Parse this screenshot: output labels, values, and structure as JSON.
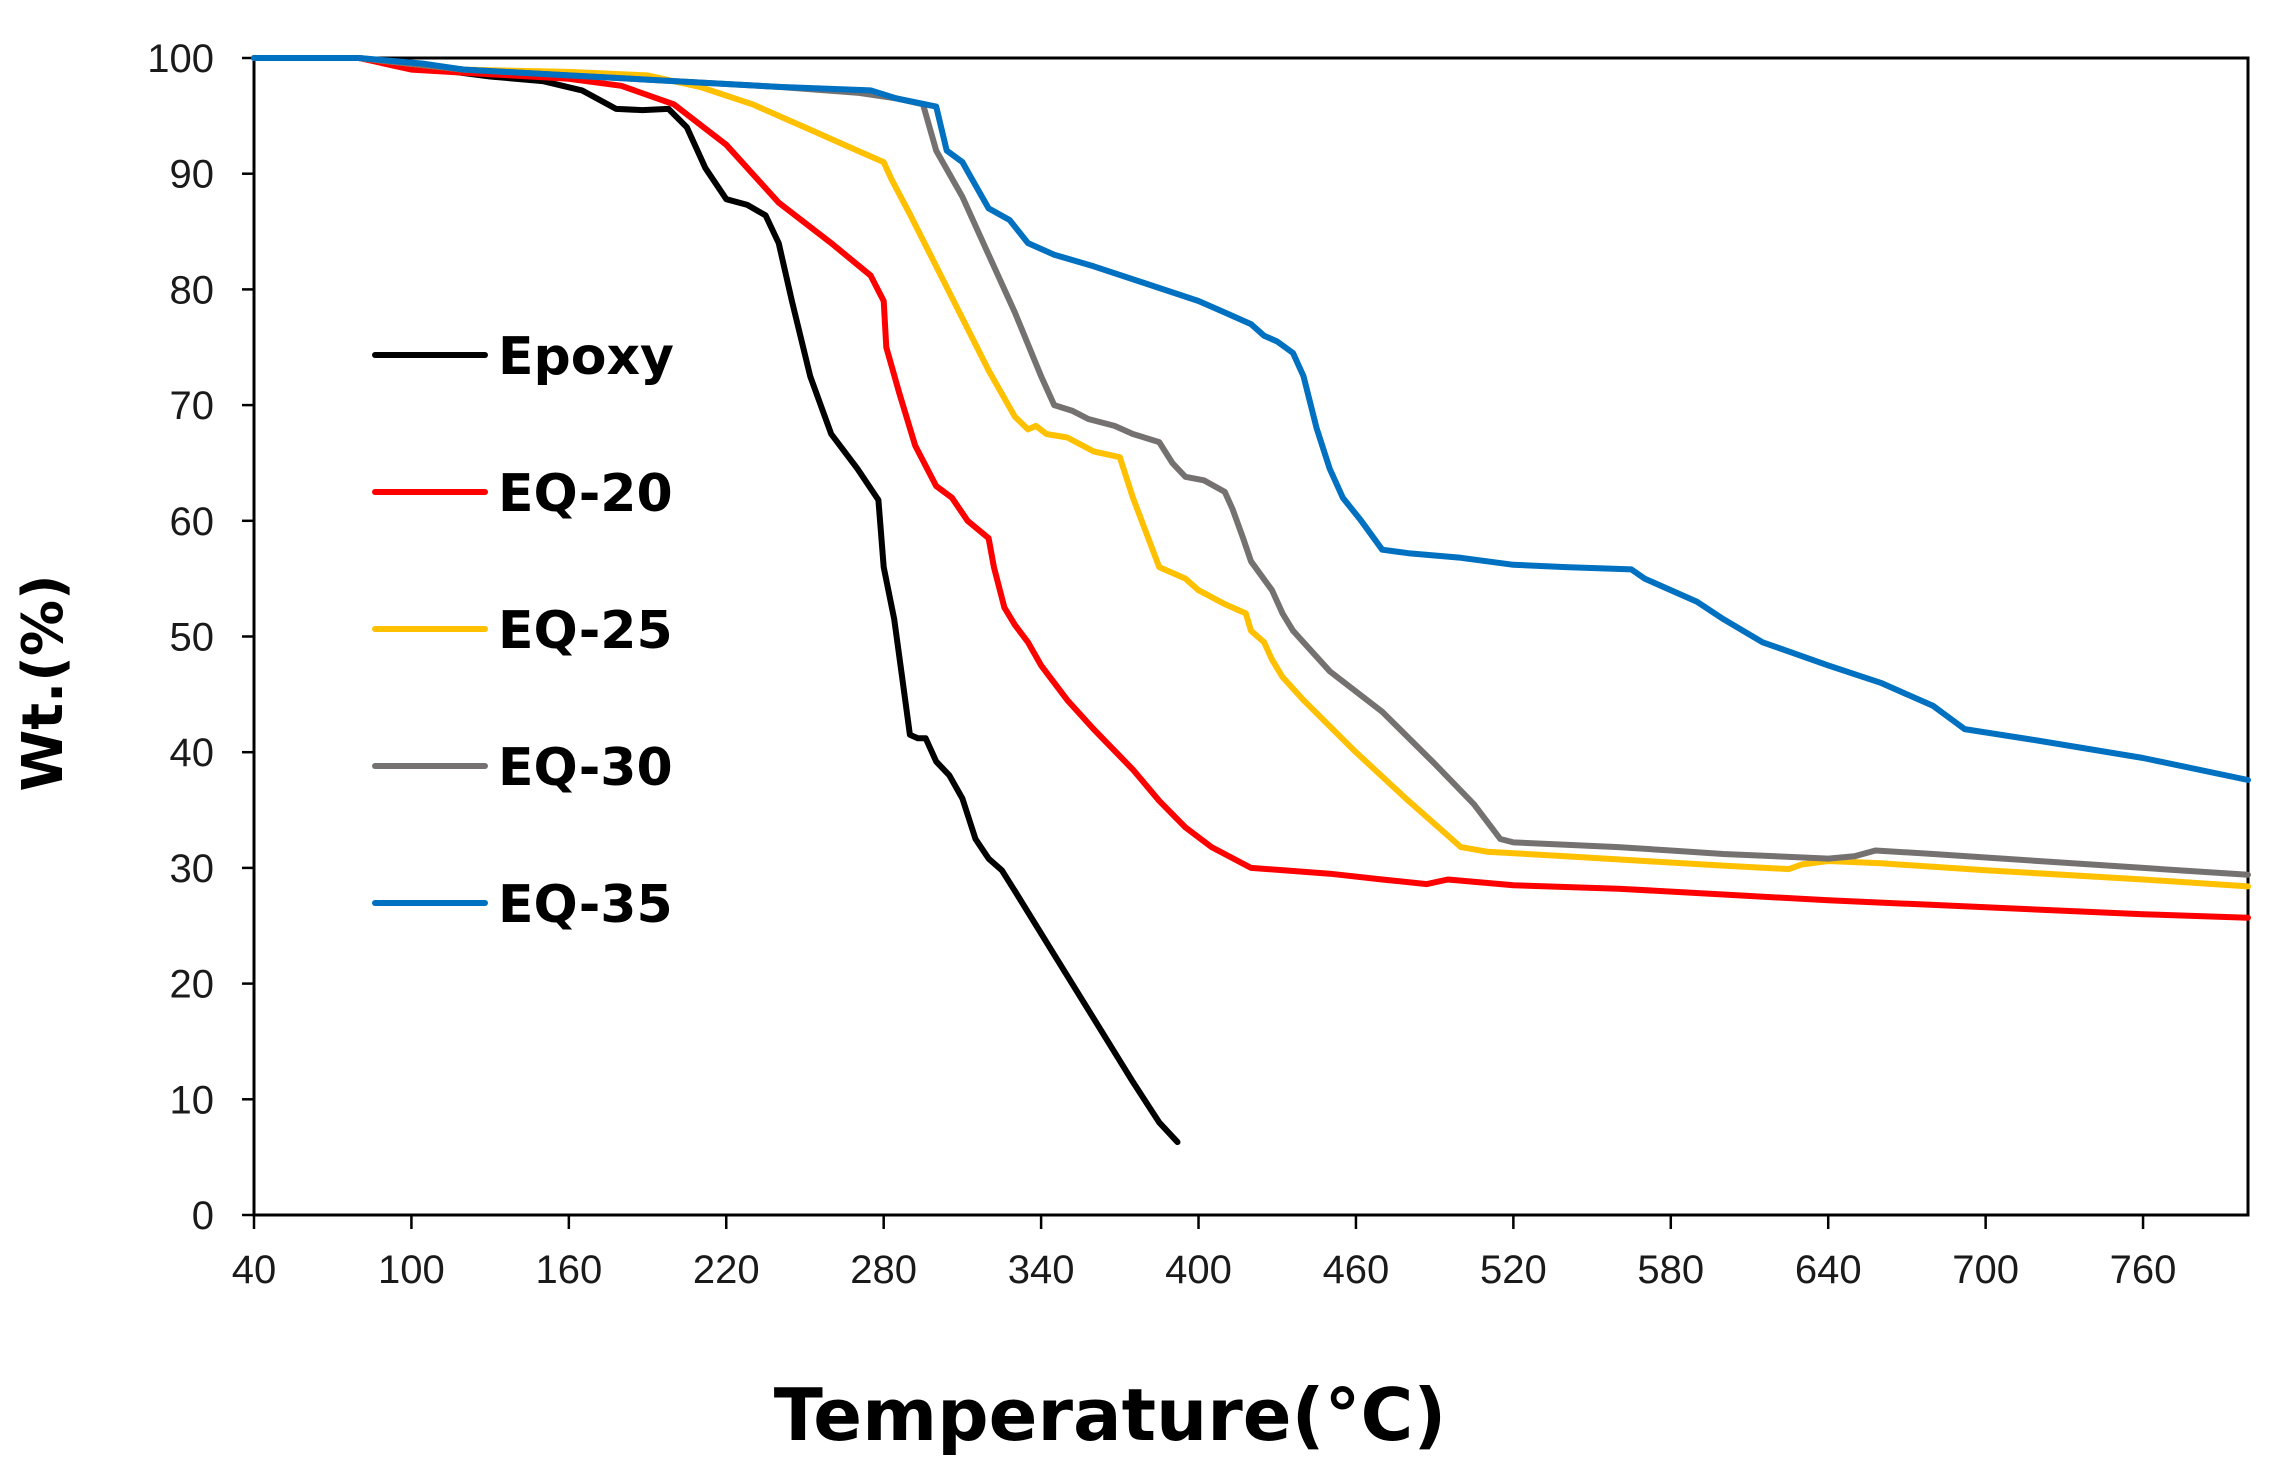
{
  "chart_data": {
    "type": "line",
    "title": "",
    "xlabel": "Temperature(°C)",
    "ylabel": "Wt.(%)",
    "xlim": [
      40,
      800
    ],
    "ylim": [
      0,
      100
    ],
    "x_ticks": [
      "40",
      "100",
      "160",
      "220",
      "280",
      "340",
      "400",
      "460",
      "520",
      "580",
      "640",
      "700",
      "760"
    ],
    "y_ticks": [
      "0",
      "10",
      "20",
      "30",
      "40",
      "50",
      "60",
      "70",
      "80",
      "90",
      "100"
    ],
    "grid": false,
    "legend_position": "left-middle",
    "series": [
      {
        "name": "Epoxy",
        "color": "#000000",
        "points": [
          [
            40,
            100
          ],
          [
            80,
            100
          ],
          [
            110,
            99
          ],
          [
            130,
            98.4
          ],
          [
            150,
            98
          ],
          [
            165,
            97.2
          ],
          [
            178,
            95.6
          ],
          [
            188,
            95.5
          ],
          [
            198,
            95.6
          ],
          [
            205,
            94
          ],
          [
            212,
            90.5
          ],
          [
            220,
            87.8
          ],
          [
            228,
            87.3
          ],
          [
            235,
            86.4
          ],
          [
            240,
            84
          ],
          [
            245,
            79
          ],
          [
            252,
            72.5
          ],
          [
            260,
            67.5
          ],
          [
            270,
            64.5
          ],
          [
            278,
            61.8
          ],
          [
            280,
            56
          ],
          [
            284,
            51.5
          ],
          [
            287,
            46.5
          ],
          [
            290,
            41.5
          ],
          [
            293,
            41.2
          ],
          [
            296,
            41.2
          ],
          [
            300,
            39.2
          ],
          [
            305,
            38
          ],
          [
            310,
            36
          ],
          [
            315,
            32.5
          ],
          [
            320,
            30.8
          ],
          [
            325,
            29.8
          ],
          [
            330,
            28
          ],
          [
            345,
            22.5
          ],
          [
            360,
            17
          ],
          [
            375,
            11.5
          ],
          [
            385,
            8
          ],
          [
            392,
            6.3
          ]
        ]
      },
      {
        "name": "EQ-20",
        "color": "#ff0000",
        "points": [
          [
            40,
            100
          ],
          [
            80,
            100
          ],
          [
            100,
            99
          ],
          [
            130,
            98.6
          ],
          [
            160,
            98.2
          ],
          [
            180,
            97.6
          ],
          [
            200,
            96
          ],
          [
            220,
            92.5
          ],
          [
            240,
            87.5
          ],
          [
            260,
            84
          ],
          [
            275,
            81.2
          ],
          [
            280,
            79
          ],
          [
            281,
            75
          ],
          [
            286,
            71
          ],
          [
            292,
            66.5
          ],
          [
            300,
            63
          ],
          [
            306,
            62
          ],
          [
            312,
            60
          ],
          [
            320,
            58.5
          ],
          [
            322,
            56
          ],
          [
            326,
            52.5
          ],
          [
            330,
            51
          ],
          [
            335,
            49.5
          ],
          [
            340,
            47.5
          ],
          [
            350,
            44.5
          ],
          [
            360,
            42
          ],
          [
            375,
            38.5
          ],
          [
            385,
            35.8
          ],
          [
            395,
            33.5
          ],
          [
            405,
            31.8
          ],
          [
            420,
            30
          ],
          [
            450,
            29.5
          ],
          [
            470,
            29
          ],
          [
            487,
            28.6
          ],
          [
            495,
            29
          ],
          [
            520,
            28.5
          ],
          [
            560,
            28.2
          ],
          [
            600,
            27.7
          ],
          [
            640,
            27.2
          ],
          [
            660,
            27
          ],
          [
            680,
            26.8
          ],
          [
            720,
            26.4
          ],
          [
            760,
            26
          ],
          [
            800,
            25.7
          ]
        ]
      },
      {
        "name": "EQ-25",
        "color": "#ffc000",
        "points": [
          [
            40,
            100
          ],
          [
            80,
            100
          ],
          [
            120,
            99
          ],
          [
            160,
            98.8
          ],
          [
            190,
            98.5
          ],
          [
            210,
            97.5
          ],
          [
            230,
            96
          ],
          [
            250,
            94
          ],
          [
            270,
            92
          ],
          [
            280,
            91
          ],
          [
            283,
            89.5
          ],
          [
            290,
            86.5
          ],
          [
            300,
            82
          ],
          [
            310,
            77.5
          ],
          [
            320,
            73
          ],
          [
            330,
            69
          ],
          [
            335,
            67.9
          ],
          [
            338,
            68.2
          ],
          [
            342,
            67.5
          ],
          [
            350,
            67.2
          ],
          [
            360,
            66
          ],
          [
            370,
            65.5
          ],
          [
            375,
            62
          ],
          [
            380,
            59
          ],
          [
            385,
            56
          ],
          [
            390,
            55.5
          ],
          [
            395,
            55
          ],
          [
            400,
            54
          ],
          [
            410,
            52.8
          ],
          [
            418,
            52
          ],
          [
            420,
            50.5
          ],
          [
            425,
            49.5
          ],
          [
            428,
            48
          ],
          [
            432,
            46.5
          ],
          [
            440,
            44.5
          ],
          [
            460,
            40
          ],
          [
            480,
            35.8
          ],
          [
            500,
            31.8
          ],
          [
            510,
            31.4
          ],
          [
            540,
            31
          ],
          [
            570,
            30.6
          ],
          [
            600,
            30.2
          ],
          [
            625,
            29.9
          ],
          [
            630,
            30.3
          ],
          [
            640,
            30.6
          ],
          [
            660,
            30.4
          ],
          [
            700,
            29.8
          ],
          [
            760,
            29
          ],
          [
            800,
            28.4
          ]
        ]
      },
      {
        "name": "EQ-30",
        "color": "#767171",
        "points": [
          [
            40,
            100
          ],
          [
            80,
            100
          ],
          [
            120,
            99
          ],
          [
            160,
            98.5
          ],
          [
            200,
            98
          ],
          [
            240,
            97.5
          ],
          [
            270,
            97
          ],
          [
            285,
            96.5
          ],
          [
            295,
            96
          ],
          [
            300,
            92
          ],
          [
            310,
            88
          ],
          [
            320,
            83
          ],
          [
            330,
            78
          ],
          [
            340,
            72.5
          ],
          [
            345,
            70
          ],
          [
            352,
            69.5
          ],
          [
            358,
            68.8
          ],
          [
            368,
            68.2
          ],
          [
            375,
            67.5
          ],
          [
            385,
            66.8
          ],
          [
            390,
            65
          ],
          [
            395,
            63.8
          ],
          [
            402,
            63.5
          ],
          [
            410,
            62.5
          ],
          [
            413,
            61
          ],
          [
            417,
            58.5
          ],
          [
            420,
            56.5
          ],
          [
            428,
            54
          ],
          [
            432,
            52
          ],
          [
            436,
            50.5
          ],
          [
            450,
            47
          ],
          [
            470,
            43.5
          ],
          [
            490,
            39
          ],
          [
            505,
            35.5
          ],
          [
            515,
            32.5
          ],
          [
            520,
            32.2
          ],
          [
            540,
            32
          ],
          [
            560,
            31.8
          ],
          [
            580,
            31.5
          ],
          [
            600,
            31.2
          ],
          [
            620,
            31
          ],
          [
            640,
            30.8
          ],
          [
            650,
            31
          ],
          [
            658,
            31.5
          ],
          [
            680,
            31.2
          ],
          [
            720,
            30.6
          ],
          [
            760,
            30
          ],
          [
            800,
            29.4
          ]
        ]
      },
      {
        "name": "EQ-35",
        "color": "#0070c0",
        "points": [
          [
            40,
            100
          ],
          [
            80,
            100
          ],
          [
            105,
            99.5
          ],
          [
            120,
            99
          ],
          [
            160,
            98.5
          ],
          [
            200,
            98
          ],
          [
            240,
            97.5
          ],
          [
            275,
            97.2
          ],
          [
            285,
            96.5
          ],
          [
            300,
            95.8
          ],
          [
            304,
            92
          ],
          [
            310,
            91
          ],
          [
            315,
            89
          ],
          [
            320,
            87
          ],
          [
            328,
            86
          ],
          [
            335,
            84
          ],
          [
            345,
            83
          ],
          [
            360,
            82
          ],
          [
            380,
            80.5
          ],
          [
            400,
            79
          ],
          [
            410,
            78
          ],
          [
            420,
            77
          ],
          [
            425,
            76
          ],
          [
            430,
            75.5
          ],
          [
            436,
            74.5
          ],
          [
            440,
            72.5
          ],
          [
            445,
            68
          ],
          [
            450,
            64.5
          ],
          [
            455,
            62
          ],
          [
            462,
            60
          ],
          [
            470,
            57.5
          ],
          [
            480,
            57.2
          ],
          [
            500,
            56.8
          ],
          [
            520,
            56.2
          ],
          [
            540,
            56
          ],
          [
            565,
            55.8
          ],
          [
            570,
            55
          ],
          [
            590,
            53
          ],
          [
            600,
            51.5
          ],
          [
            615,
            49.5
          ],
          [
            640,
            47.5
          ],
          [
            660,
            46
          ],
          [
            680,
            44
          ],
          [
            686,
            43
          ],
          [
            692,
            42
          ],
          [
            720,
            41
          ],
          [
            760,
            39.5
          ],
          [
            800,
            37.6
          ]
        ]
      }
    ]
  }
}
